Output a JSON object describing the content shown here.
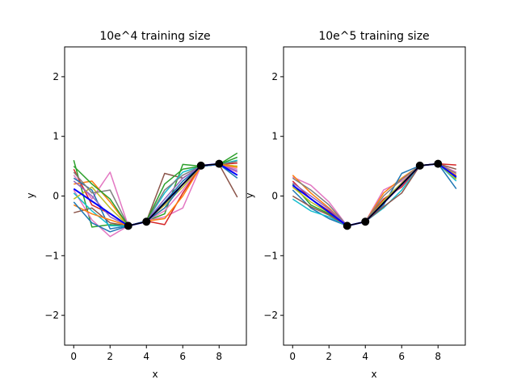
{
  "chart_data": [
    {
      "type": "line",
      "title": "10e^4 training size",
      "xlabel": "x",
      "ylabel": "y",
      "xlim": [
        -0.5,
        9.5
      ],
      "ylim": [
        -2.5,
        2.5
      ],
      "xticks": [
        0,
        2,
        4,
        6,
        8
      ],
      "yticks": [
        -2,
        -1,
        0,
        1,
        2
      ],
      "grid": false,
      "legend": "none",
      "sample_x": [
        0,
        1,
        2,
        3,
        4,
        5,
        6,
        7,
        8,
        9
      ],
      "sample_series": [
        {
          "color": "#2ca02c",
          "values": [
            0.6,
            -0.52,
            -0.48,
            -0.5,
            -0.42,
            -0.3,
            0.53,
            0.5,
            0.53,
            0.72
          ]
        },
        {
          "color": "#e377c2",
          "values": [
            0.35,
            -0.05,
            0.4,
            -0.5,
            -0.42,
            -0.35,
            -0.2,
            0.5,
            0.53,
            0.4
          ]
        },
        {
          "color": "#e377c2",
          "values": [
            0.1,
            -0.4,
            -0.68,
            -0.5,
            -0.42,
            -0.25,
            0.1,
            0.5,
            0.53,
            0.45
          ]
        },
        {
          "color": "#8c564b",
          "values": [
            -0.28,
            -0.2,
            -0.45,
            -0.5,
            -0.42,
            0.38,
            0.3,
            0.5,
            0.53,
            -0.02
          ]
        },
        {
          "color": "#ff7f0e",
          "values": [
            0.2,
            0.25,
            -0.1,
            -0.5,
            -0.42,
            -0.2,
            0.2,
            0.5,
            0.53,
            0.5
          ]
        },
        {
          "color": "#d62728",
          "values": [
            0.45,
            -0.15,
            -0.3,
            -0.5,
            -0.42,
            -0.48,
            0.05,
            0.5,
            0.53,
            0.55
          ]
        },
        {
          "color": "#1f77b4",
          "values": [
            0.3,
            0.1,
            -0.55,
            -0.5,
            -0.42,
            -0.1,
            0.25,
            0.5,
            0.53,
            0.35
          ]
        },
        {
          "color": "#17becf",
          "values": [
            0.05,
            -0.25,
            -0.5,
            -0.5,
            -0.42,
            0.05,
            0.4,
            0.5,
            0.53,
            0.6
          ]
        },
        {
          "color": "#bcbd22",
          "values": [
            -0.05,
            0.15,
            -0.2,
            -0.5,
            -0.42,
            -0.15,
            0.15,
            0.5,
            0.53,
            0.5
          ]
        },
        {
          "color": "#7f7f7f",
          "values": [
            0.4,
            0.05,
            0.1,
            -0.5,
            -0.42,
            0.1,
            0.35,
            0.5,
            0.53,
            0.58
          ]
        },
        {
          "color": "#9467bd",
          "values": [
            0.25,
            0.0,
            -0.35,
            -0.5,
            -0.42,
            -0.05,
            0.3,
            0.5,
            0.53,
            0.42
          ]
        },
        {
          "color": "#ff7f0e",
          "values": [
            -0.15,
            -0.3,
            -0.4,
            -0.5,
            -0.42,
            -0.38,
            0.0,
            0.5,
            0.53,
            0.48
          ]
        },
        {
          "color": "#2ca02c",
          "values": [
            0.5,
            0.2,
            -0.05,
            -0.5,
            -0.42,
            0.2,
            0.45,
            0.5,
            0.53,
            0.65
          ]
        },
        {
          "color": "#1f77b4",
          "values": [
            -0.1,
            -0.45,
            -0.6,
            -0.5,
            -0.42,
            -0.2,
            0.2,
            0.5,
            0.53,
            0.3
          ]
        }
      ],
      "fit_line": {
        "color": "#0000ff",
        "x": [
          0,
          3,
          4,
          7,
          8,
          9
        ],
        "values": [
          0.12,
          -0.5,
          -0.43,
          0.51,
          0.54,
          0.35
        ]
      },
      "points": {
        "color": "#000000",
        "x": [
          3,
          4,
          7,
          8
        ],
        "values": [
          -0.5,
          -0.43,
          0.51,
          0.54
        ]
      }
    },
    {
      "type": "line",
      "title": "10e^5 training size",
      "xlabel": "x",
      "ylabel": "y",
      "xlim": [
        -0.5,
        9.5
      ],
      "ylim": [
        -2.5,
        2.5
      ],
      "xticks": [
        0,
        2,
        4,
        6,
        8
      ],
      "yticks": [
        -2,
        -1,
        0,
        1,
        2
      ],
      "grid": false,
      "legend": "none",
      "sample_x": [
        0,
        1,
        2,
        3,
        4,
        5,
        6,
        7,
        8,
        9
      ],
      "sample_series": [
        {
          "color": "#e377c2",
          "values": [
            0.32,
            0.18,
            -0.1,
            -0.5,
            -0.43,
            0.1,
            0.25,
            0.51,
            0.54,
            0.4
          ]
        },
        {
          "color": "#ff7f0e",
          "values": [
            0.35,
            0.05,
            -0.2,
            -0.5,
            -0.43,
            0.05,
            0.3,
            0.51,
            0.54,
            0.35
          ]
        },
        {
          "color": "#2ca02c",
          "values": [
            0.2,
            -0.15,
            -0.3,
            -0.5,
            -0.43,
            -0.1,
            0.2,
            0.51,
            0.54,
            0.3
          ]
        },
        {
          "color": "#1f77b4",
          "values": [
            0.1,
            -0.2,
            -0.38,
            -0.5,
            -0.43,
            -0.15,
            0.38,
            0.51,
            0.54,
            0.12
          ]
        },
        {
          "color": "#d62728",
          "values": [
            0.25,
            -0.05,
            -0.25,
            -0.5,
            -0.43,
            -0.05,
            0.15,
            0.51,
            0.54,
            0.52
          ]
        },
        {
          "color": "#17becf",
          "values": [
            -0.05,
            -0.25,
            -0.35,
            -0.5,
            -0.43,
            -0.2,
            0.1,
            0.51,
            0.54,
            0.25
          ]
        },
        {
          "color": "#8c564b",
          "values": [
            0.0,
            -0.18,
            -0.32,
            -0.5,
            -0.43,
            -0.18,
            0.05,
            0.51,
            0.54,
            0.45
          ]
        },
        {
          "color": "#7f7f7f",
          "values": [
            0.3,
            0.1,
            -0.15,
            -0.5,
            -0.43,
            0.0,
            0.28,
            0.51,
            0.54,
            0.38
          ]
        },
        {
          "color": "#bcbd22",
          "values": [
            0.15,
            -0.1,
            -0.28,
            -0.5,
            -0.43,
            -0.08,
            0.22,
            0.51,
            0.54,
            0.28
          ]
        },
        {
          "color": "#9467bd",
          "values": [
            0.22,
            0.0,
            -0.22,
            -0.5,
            -0.43,
            -0.12,
            0.18,
            0.51,
            0.54,
            0.33
          ]
        }
      ],
      "fit_line": {
        "color": "#0000ff",
        "x": [
          0,
          3,
          4,
          7,
          8,
          9
        ],
        "values": [
          0.18,
          -0.5,
          -0.43,
          0.51,
          0.54,
          0.32
        ]
      },
      "points": {
        "color": "#000000",
        "x": [
          3,
          4,
          7,
          8
        ],
        "values": [
          -0.5,
          -0.43,
          0.51,
          0.54
        ]
      }
    }
  ]
}
